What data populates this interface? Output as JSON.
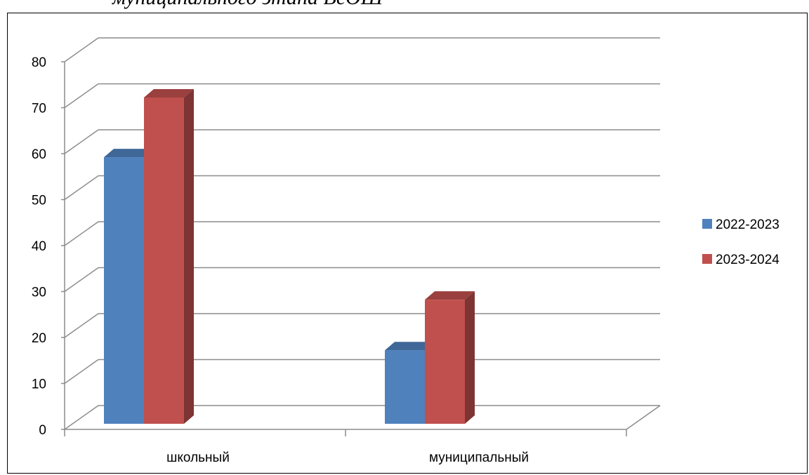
{
  "heading": "муниципального этапа ВсОШ",
  "chart_data": {
    "type": "bar",
    "title": "",
    "xlabel": "",
    "ylabel": "",
    "categories": [
      "школьный",
      "муниципальный"
    ],
    "series": [
      {
        "name": "2022-2023",
        "values": [
          58,
          16
        ],
        "color": "#4f81bd"
      },
      {
        "name": "2023-2024",
        "values": [
          71,
          27
        ],
        "color": "#c0504d"
      }
    ],
    "ylim": [
      0,
      80
    ],
    "yticks": [
      "0",
      "10",
      "20",
      "30",
      "40",
      "50",
      "60",
      "70",
      "80"
    ],
    "grid": true,
    "legend": "right",
    "style": "3d-clustered-column"
  }
}
